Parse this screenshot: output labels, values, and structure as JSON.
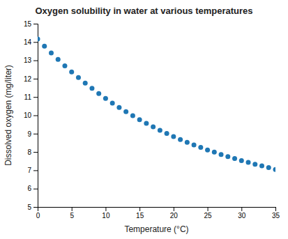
{
  "chart_data": {
    "type": "scatter",
    "title": "Oxygen solubility in water at various temperatures",
    "xlabel": "Temperature (°C)",
    "ylabel": "Dissolved oxygen (mg/liter)",
    "x": [
      0,
      1,
      2,
      3,
      4,
      5,
      6,
      7,
      8,
      9,
      10,
      11,
      12,
      13,
      14,
      15,
      16,
      17,
      18,
      19,
      20,
      21,
      22,
      23,
      24,
      25,
      26,
      27,
      28,
      29,
      30,
      31,
      32,
      33,
      34,
      35
    ],
    "values": [
      14.16,
      13.77,
      13.4,
      13.05,
      12.7,
      12.37,
      12.06,
      11.76,
      11.47,
      11.19,
      10.92,
      10.67,
      10.43,
      10.2,
      9.98,
      9.76,
      9.56,
      9.37,
      9.18,
      9.01,
      8.84,
      8.68,
      8.53,
      8.38,
      8.25,
      8.11,
      7.99,
      7.86,
      7.75,
      7.64,
      7.53,
      7.43,
      7.33,
      7.24,
      7.15,
      7.04
    ],
    "xlim": [
      0,
      35
    ],
    "ylim": [
      5,
      15
    ],
    "xticks": [
      0,
      5,
      10,
      15,
      20,
      25,
      30,
      35
    ],
    "yticks": [
      5,
      6,
      7,
      8,
      9,
      10,
      11,
      12,
      13,
      14,
      15
    ],
    "grid": false
  }
}
